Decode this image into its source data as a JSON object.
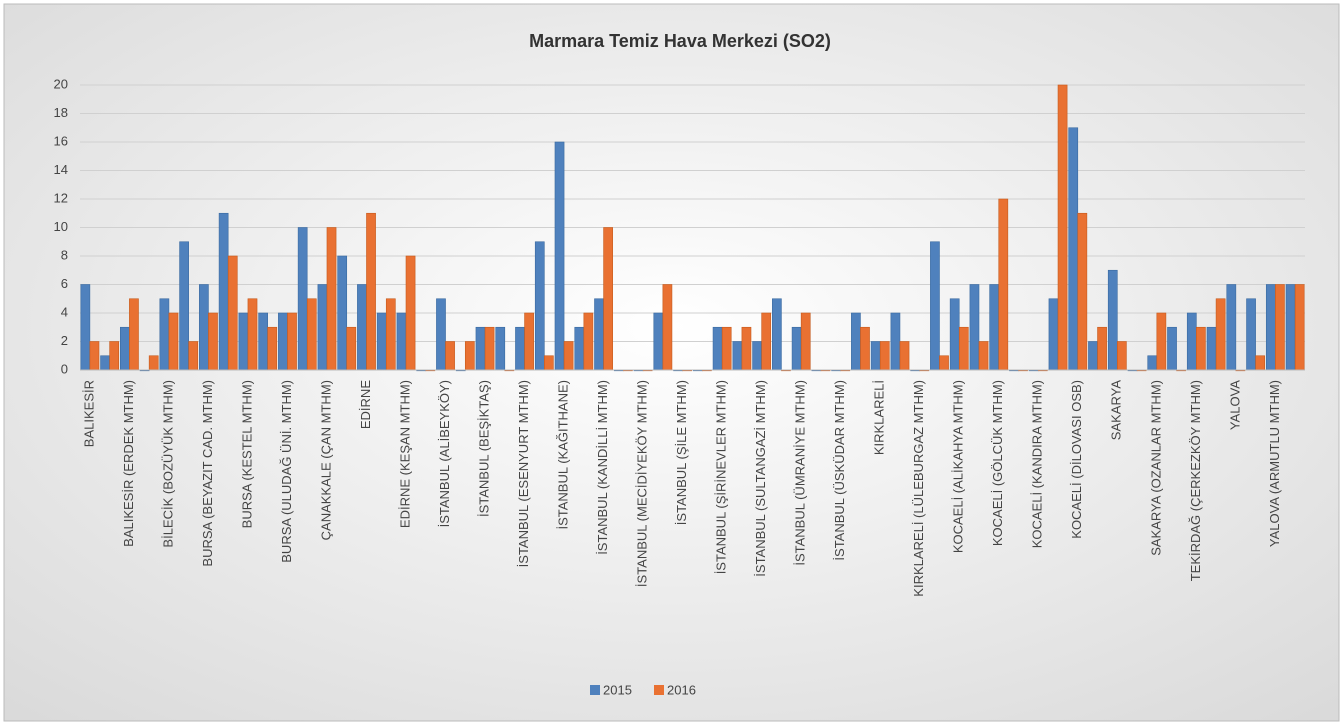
{
  "chart_data": {
    "type": "bar",
    "title": "Marmara Temiz Hava Merkezi (SO2)",
    "categories": [
      "BALIKESİR",
      null,
      "BALIKESİR (ERDEK MTHM)",
      null,
      "BİLECİK (BOZÜYÜK MTHM)",
      null,
      "BURSA (BEYAZIT CAD. MTHM)",
      null,
      "BURSA (KESTEL MTHM)",
      null,
      "BURSA (ULUDAĞ ÜNİ. MTHM)",
      null,
      "ÇANAKKALE (ÇAN MTHM)",
      null,
      "EDİRNE",
      null,
      "EDİRNE (KEŞAN MTHM)",
      null,
      "İSTANBUL (ALİBEYKÖY)",
      null,
      "İSTANBUL (BEŞİKTAŞ)",
      null,
      "İSTANBUL (ESENYURT MTHM)",
      null,
      "İSTANBUL (KAĞITHANE)",
      null,
      "İSTANBUL (KANDİLLİ MTHM)",
      null,
      "İSTANBUL (MECİDİYEKÖY MTHM)",
      null,
      "İSTANBUL (ŞİLE MTHM)",
      null,
      "İSTANBUL (ŞİRİNEVLER MTHM)",
      null,
      "İSTANBUL (SULTANGAZİ MTHM)",
      null,
      "İSTANBUL (ÜMRANİYE MTHM)",
      null,
      "İSTANBUL (ÜSKÜDAR MTHM)",
      null,
      "KIRKLARELİ",
      null,
      "KIRKLARELİ (LÜLEBURGAZ MTHM)",
      null,
      "KOCAELİ (ALİKAHYA MTHM)",
      null,
      "KOCAELİ (GÖLCÜK MTHM)",
      null,
      "KOCAELİ (KANDIRA MTHM)",
      null,
      "KOCAELİ (DİLOVASI OSB)",
      null,
      "SAKARYA",
      null,
      "SAKARYA (OZANLAR MTHM)",
      null,
      "TEKİRDAĞ (ÇERKEZKÖY MTHM)",
      null,
      "YALOVA",
      null,
      "YALOVA (ARMUTLU MTHM)",
      null
    ],
    "series": [
      {
        "name": "2015",
        "color": "#4f81bd",
        "values": [
          6,
          1,
          3,
          0,
          5,
          9,
          6,
          11,
          4,
          4,
          4,
          10,
          6,
          8,
          6,
          4,
          4,
          0,
          5,
          0,
          3,
          3,
          3,
          9,
          16,
          3,
          5,
          0,
          0,
          4,
          0,
          0,
          3,
          2,
          2,
          5,
          3,
          0,
          0,
          4,
          2,
          4,
          0,
          9,
          5,
          6,
          6,
          0,
          0,
          5,
          17,
          2,
          7,
          0,
          1,
          3,
          4,
          3,
          6,
          5,
          6,
          6
        ]
      },
      {
        "name": "2016",
        "color": "#e97132",
        "values": [
          2,
          2,
          5,
          1,
          4,
          2,
          4,
          8,
          5,
          3,
          4,
          5,
          10,
          3,
          11,
          5,
          8,
          0,
          2,
          2,
          3,
          0,
          4,
          1,
          2,
          4,
          10,
          0,
          0,
          6,
          0,
          0,
          3,
          3,
          4,
          0,
          4,
          0,
          0,
          3,
          2,
          2,
          0,
          1,
          3,
          2,
          12,
          0,
          0,
          20,
          11,
          3,
          2,
          0,
          4,
          0,
          3,
          5,
          0,
          1,
          6,
          6
        ]
      }
    ],
    "ylim": [
      0,
      20
    ],
    "yticks": [
      0,
      2,
      4,
      6,
      8,
      10,
      12,
      14,
      16,
      18,
      20
    ],
    "grid": true,
    "legend": "bottom"
  }
}
